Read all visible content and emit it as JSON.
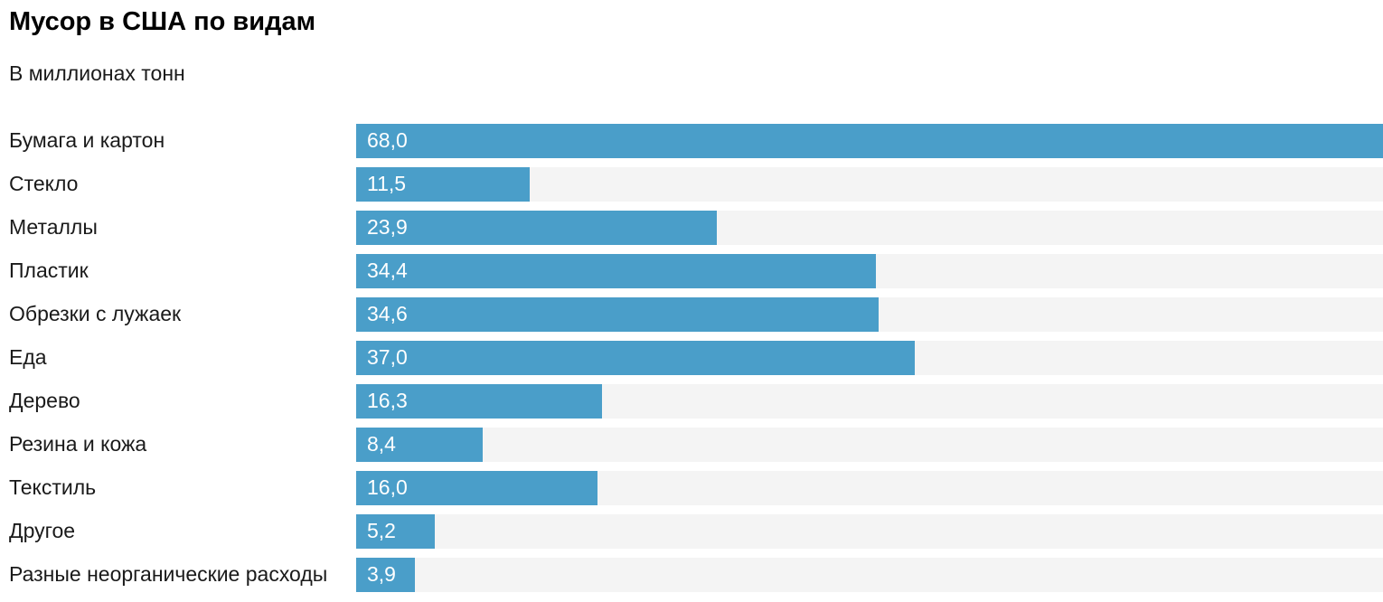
{
  "chart_data": {
    "type": "bar",
    "orientation": "horizontal",
    "title": "Мусор в США по видам",
    "subtitle": "В миллионах тонн",
    "categories": [
      "Бумага и картон",
      "Стекло",
      "Металлы",
      "Пластик",
      "Обрезки с лужаек",
      "Еда",
      "Дерево",
      "Резина и кожа",
      "Текстиль",
      "Другое",
      "Разные неорганические расходы"
    ],
    "values": [
      68.0,
      11.5,
      23.9,
      34.4,
      34.6,
      37.0,
      16.3,
      8.4,
      16.0,
      5.2,
      3.9
    ],
    "value_labels": [
      "68,0",
      "11,5",
      "23,9",
      "34,4",
      "34,6",
      "37,0",
      "16,3",
      "8,4",
      "16,0",
      "5,2",
      "3,9"
    ],
    "xlim": [
      0,
      68
    ],
    "grid": false,
    "legend": "none",
    "bar_color": "#4a9ec9",
    "track_color": "#f4f4f4",
    "value_label_color": "#ffffff",
    "category_label_color": "#1a1a1a"
  }
}
